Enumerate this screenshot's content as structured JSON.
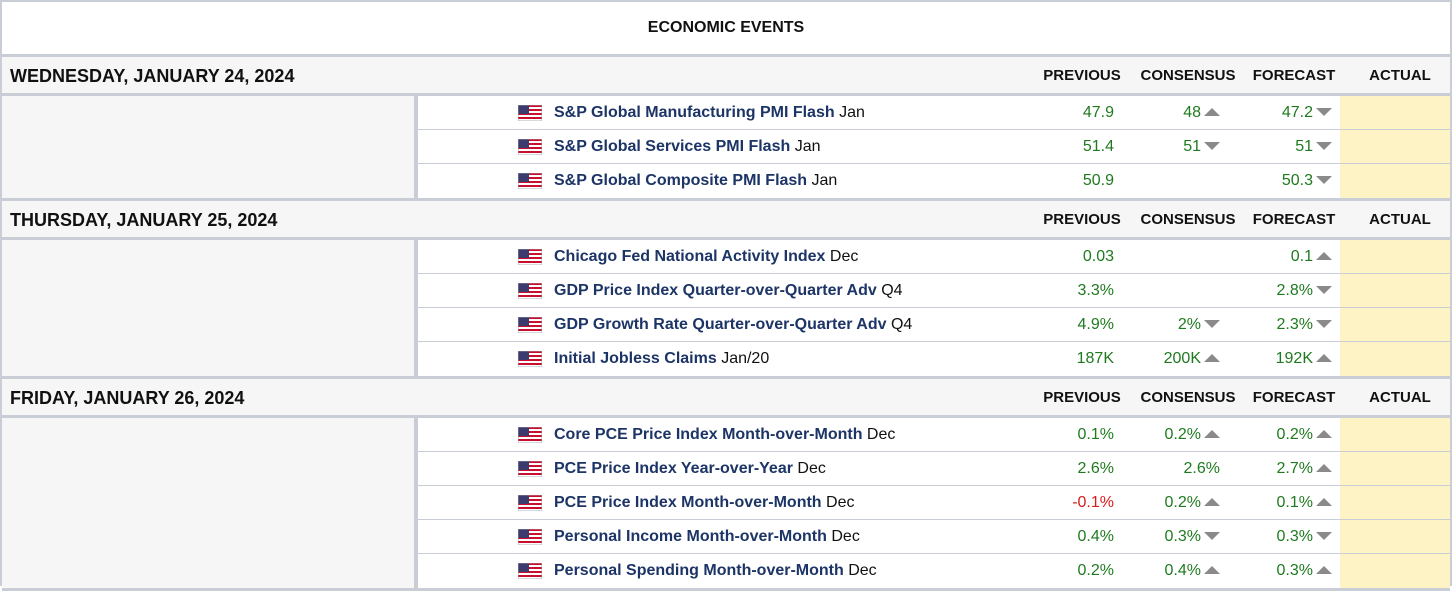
{
  "title": "ECONOMIC EVENTS",
  "columns": {
    "previous": "PREVIOUS",
    "consensus": "CONSENSUS",
    "forecast": "FORECAST",
    "actual": "ACTUAL"
  },
  "colors": {
    "positive": "#1f7a1f",
    "negative": "#d81b1b",
    "event": "#1c3466",
    "actual_bg": "#fdf3c5"
  },
  "days": [
    {
      "date": "WEDNESDAY, JANUARY 24, 2024",
      "events": [
        {
          "flag": "us-flag-icon",
          "name": "S&P Global Manufacturing PMI Flash",
          "period": "Jan",
          "previous": "47.9",
          "consensus": "48",
          "consensus_arrow": "up",
          "forecast": "47.2",
          "forecast_arrow": "down",
          "actual": ""
        },
        {
          "flag": "us-flag-icon",
          "name": "S&P Global Services PMI Flash",
          "period": "Jan",
          "previous": "51.4",
          "consensus": "51",
          "consensus_arrow": "down",
          "forecast": "51",
          "forecast_arrow": "down",
          "actual": ""
        },
        {
          "flag": "us-flag-icon",
          "name": "S&P Global Composite PMI Flash",
          "period": "Jan",
          "previous": "50.9",
          "consensus": "",
          "consensus_arrow": "",
          "forecast": "50.3",
          "forecast_arrow": "down",
          "actual": ""
        }
      ]
    },
    {
      "date": "THURSDAY, JANUARY 25, 2024",
      "events": [
        {
          "flag": "us-flag-icon",
          "name": "Chicago Fed National Activity Index",
          "period": "Dec",
          "previous": "0.03",
          "consensus": "",
          "consensus_arrow": "",
          "forecast": "0.1",
          "forecast_arrow": "up",
          "actual": ""
        },
        {
          "flag": "us-flag-icon",
          "name": "GDP Price Index Quarter-over-Quarter Adv",
          "period": "Q4",
          "previous": "3.3%",
          "consensus": "",
          "consensus_arrow": "",
          "forecast": "2.8%",
          "forecast_arrow": "down",
          "actual": ""
        },
        {
          "flag": "us-flag-icon",
          "name": "GDP Growth Rate Quarter-over-Quarter Adv",
          "period": "Q4",
          "previous": "4.9%",
          "consensus": "2%",
          "consensus_arrow": "down",
          "forecast": "2.3%",
          "forecast_arrow": "down",
          "actual": ""
        },
        {
          "flag": "us-flag-icon",
          "name": "Initial Jobless Claims",
          "period": "Jan/20",
          "previous": "187K",
          "consensus": "200K",
          "consensus_arrow": "up",
          "forecast": "192K",
          "forecast_arrow": "up",
          "actual": ""
        }
      ]
    },
    {
      "date": "FRIDAY, JANUARY 26, 2024",
      "events": [
        {
          "flag": "us-flag-icon",
          "name": "Core PCE Price Index Month-over-Month",
          "period": "Dec",
          "previous": "0.1%",
          "consensus": "0.2%",
          "consensus_arrow": "up",
          "forecast": "0.2%",
          "forecast_arrow": "up",
          "actual": ""
        },
        {
          "flag": "us-flag-icon",
          "name": "PCE Price Index Year-over-Year",
          "period": "Dec",
          "previous": "2.6%",
          "consensus": "2.6%",
          "consensus_arrow": "",
          "forecast": "2.7%",
          "forecast_arrow": "up",
          "actual": ""
        },
        {
          "flag": "us-flag-icon",
          "name": "PCE Price Index Month-over-Month",
          "period": "Dec",
          "previous": "-0.1%",
          "consensus": "0.2%",
          "consensus_arrow": "up",
          "forecast": "0.1%",
          "forecast_arrow": "up",
          "actual": ""
        },
        {
          "flag": "us-flag-icon",
          "name": "Personal Income Month-over-Month",
          "period": "Dec",
          "previous": "0.4%",
          "consensus": "0.3%",
          "consensus_arrow": "down",
          "forecast": "0.3%",
          "forecast_arrow": "down",
          "actual": ""
        },
        {
          "flag": "us-flag-icon",
          "name": "Personal Spending Month-over-Month",
          "period": "Dec",
          "previous": "0.2%",
          "consensus": "0.4%",
          "consensus_arrow": "up",
          "forecast": "0.3%",
          "forecast_arrow": "up",
          "actual": ""
        }
      ]
    }
  ]
}
